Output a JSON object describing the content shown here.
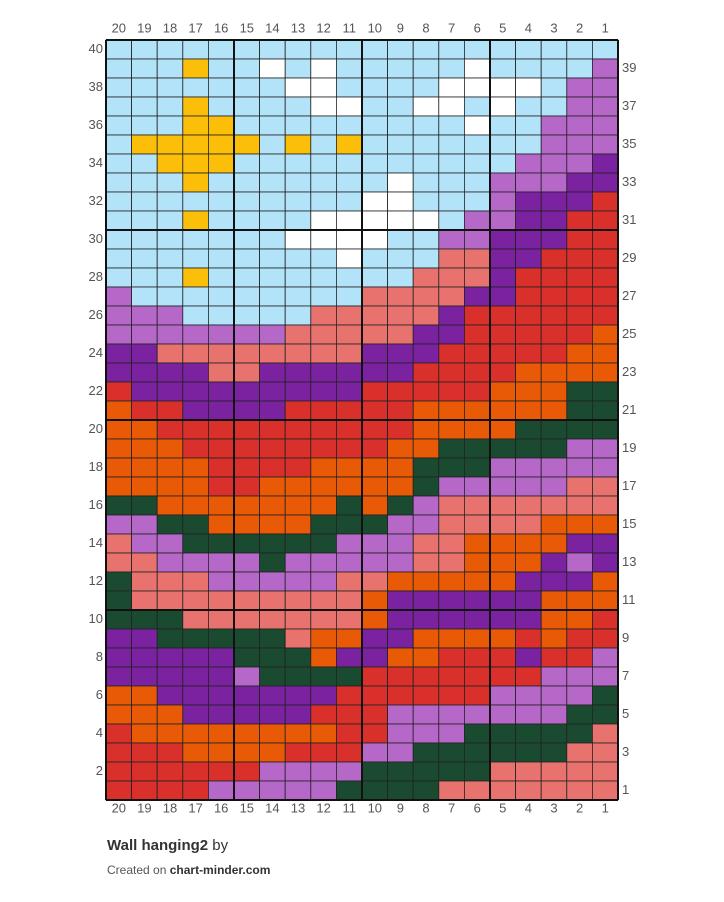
{
  "chart": {
    "column_labels": [
      20,
      19,
      18,
      17,
      16,
      15,
      14,
      13,
      12,
      11,
      10,
      9,
      8,
      7,
      6,
      5,
      4,
      3,
      2,
      1
    ],
    "left_row_labels": [
      40,
      38,
      36,
      34,
      32,
      30,
      28,
      26,
      24,
      22,
      20,
      18,
      16,
      14,
      12,
      10,
      8,
      6,
      4,
      2
    ],
    "right_row_labels": [
      39,
      37,
      35,
      33,
      31,
      29,
      27,
      25,
      23,
      21,
      19,
      17,
      15,
      13,
      11,
      9,
      7,
      5,
      3,
      1
    ],
    "palette": {
      "L": "#b3e3f8",
      "Y": "#fbbf0a",
      "W": "#ffffff",
      "P": "#b668c8",
      "V": "#7a22a0",
      "R": "#d9302c",
      "S": "#e8736e",
      "O": "#e85a05",
      "G": "#1a4a30"
    },
    "rows": [
      "LLLLLLLLLLLLLLLLLLLL",
      "LLLYLLWLWLLLLLWLLLLP",
      "LLLLLLLWWLLLLWWWWLPP",
      "LLLYLLLLWWLLWWLWLLPP",
      "LLLYYLLLLLLLLLWLLPPP",
      "LYYYYYLYLYLLLLLLLPPP",
      "LLYYYLLLLLLLLLLLPPPV",
      "LLLYLLLLLLLWLLLPPPVV",
      "LLLLLLLLLLWWLLLPVVVR",
      "LLLYLLLLWWWWWLPPVVRR",
      "LLLLLLLWWWWLLPPVVVRR",
      "LLLLLLLLLWLLLSSVVRRR",
      "LLLYLLLLLLLLSSSVRRRR",
      "PLLLLLLLLLSSSSVVRRRR",
      "PPPLLLLLSSSSSVRRRRRR",
      "PPPPPPPSSSSSVVRRRRRO",
      "VVSSSSSSSSVVVRRRRROO",
      "VVVVSSVVVVVVRRRROOOO",
      "RVVVVVVVVVRRRRROOOGG",
      "ORRVVVVRRRRROOOOOOGG",
      "OORRRRRRRRRROOOOGGGG",
      "OOORRRRRRRROOGGGGGPP",
      "OOOORRRROOOOGGGPPPPP",
      "OOOORROOOOOOGPPPPPSS",
      "GGOOOOOOOGOGPSSSSSSS",
      "PPGGOOOOGGGPPSSSSOOO",
      "SPPGGGGGGPPPSSOOOOVV",
      "SSPPPPGPPPPPSSOOOVPV",
      "GSSSPPPPPSSOOOOOVVVO",
      "GSSSSSSSSSOVVVVVVOOO",
      "GGGSSSSSSSOVVVVVVOOR",
      "VVGGGGGSOOVVOOOORORR",
      "VVVVVGGGOVVOORRRVRRP",
      "VVVVVPGGGGRRRRRRRPPP",
      "OOVVVVVVVRRRRRRPPPPG",
      "OOOVVVVVRRRPPPPPPPGG",
      "ROOOOOOOORRPPPGGGGGS",
      "RRROOOORRRPPGGGGGGSS",
      "RRRRRRPPPPGGGGGSSSSS",
      "RRRRPPPPPGGGGSSSSSSS"
    ]
  },
  "footer": {
    "title": "Wall hanging2",
    "by": "by",
    "created_on": "Created on",
    "site": "chart-minder.com"
  }
}
